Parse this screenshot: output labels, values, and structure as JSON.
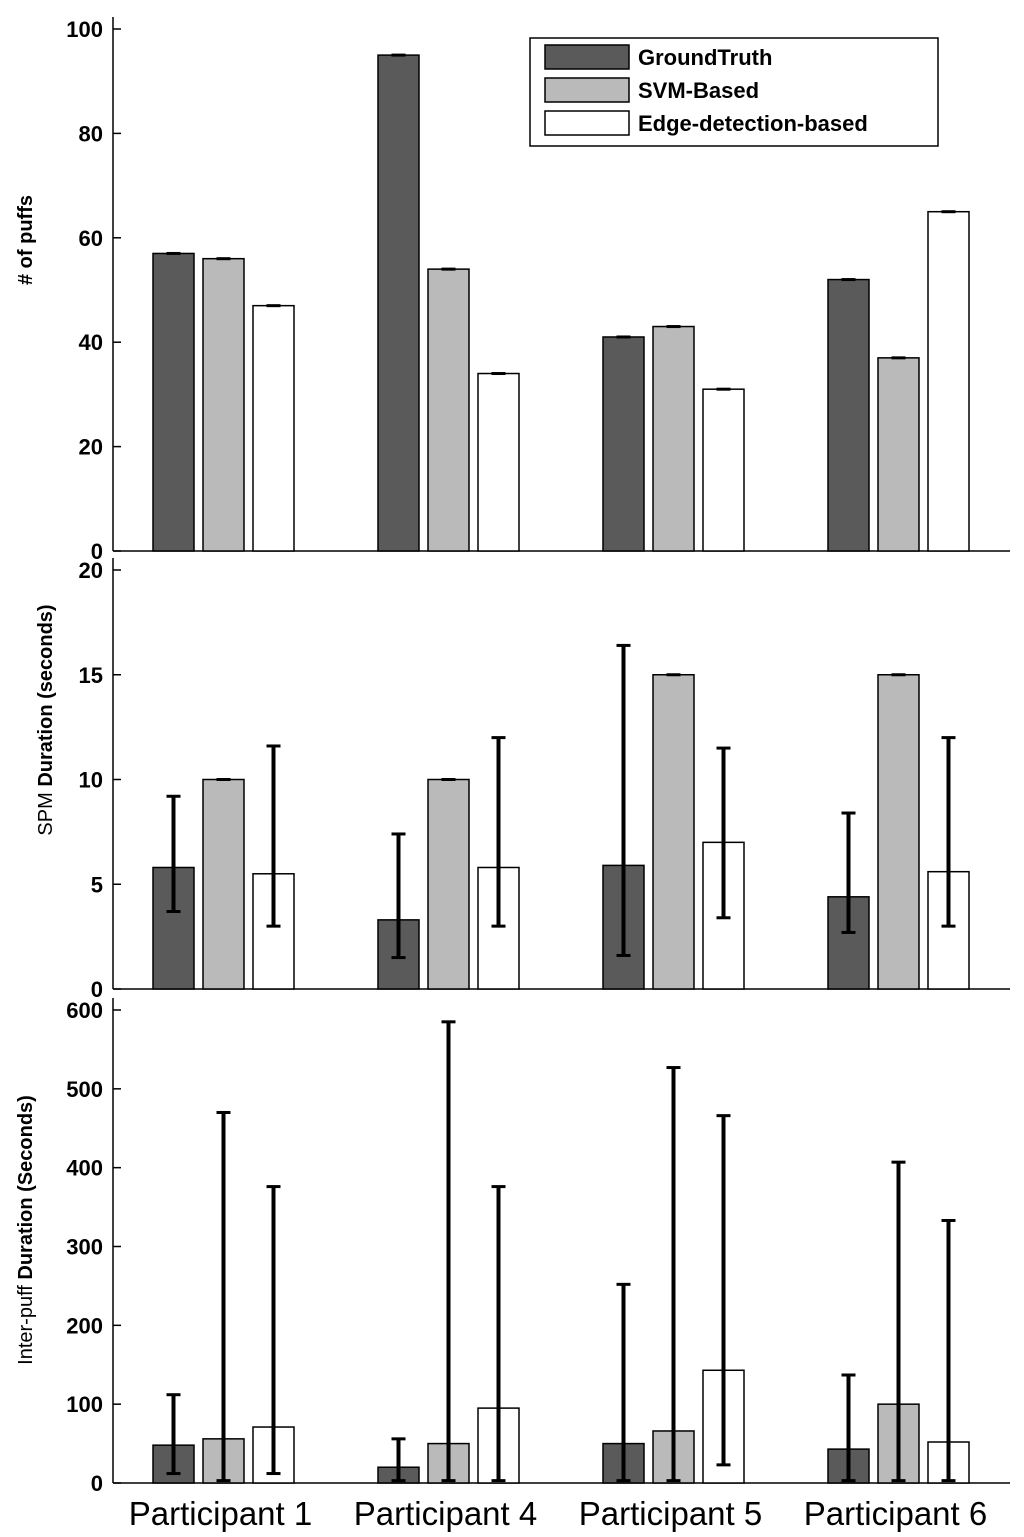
{
  "chart_data": [
    {
      "type": "bar",
      "title": "",
      "xlabel": "",
      "ylabel": "# of puffs",
      "ylim": [
        0,
        100
      ],
      "yticks": [
        "0",
        "20",
        "40",
        "60",
        "80",
        "100"
      ],
      "categories": [
        "Participant 1",
        "Participant 4",
        "Participant 5",
        "Participant 6"
      ],
      "series": [
        {
          "name": "GroundTruth",
          "values": [
            57,
            95,
            41,
            52
          ],
          "err_low": [
            57,
            95,
            41,
            52
          ],
          "err_high": [
            57,
            95,
            41,
            52
          ]
        },
        {
          "name": "SVM-Based",
          "values": [
            56,
            54,
            43,
            37
          ],
          "err_low": [
            56,
            54,
            43,
            37
          ],
          "err_high": [
            56,
            54,
            43,
            37
          ]
        },
        {
          "name": "Edge-detection-based",
          "values": [
            47,
            34,
            31,
            65
          ],
          "err_low": [
            47,
            34,
            31,
            65
          ],
          "err_high": [
            47,
            34,
            31,
            65
          ]
        }
      ],
      "legend_position": "top-right"
    },
    {
      "type": "bar",
      "title": "",
      "xlabel": "",
      "ylabel_prefix": "SPM",
      "ylabel": "Duration (seconds)",
      "ylim": [
        0,
        20
      ],
      "yticks": [
        "0",
        "5",
        "10",
        "15",
        "20"
      ],
      "categories": [
        "Participant 1",
        "Participant 4",
        "Participant 5",
        "Participant 6"
      ],
      "series": [
        {
          "name": "GroundTruth",
          "values": [
            5.8,
            3.3,
            5.9,
            4.4
          ],
          "err_low": [
            3.7,
            1.5,
            1.6,
            2.7
          ],
          "err_high": [
            9.2,
            7.4,
            16.4,
            8.4
          ]
        },
        {
          "name": "SVM-Based",
          "values": [
            10,
            10,
            15,
            15
          ],
          "err_low": [
            10,
            10,
            15,
            15
          ],
          "err_high": [
            10,
            10,
            15,
            15
          ]
        },
        {
          "name": "Edge-detection-based",
          "values": [
            5.5,
            5.8,
            7.0,
            5.6
          ],
          "err_low": [
            3.0,
            3.0,
            3.4,
            3.0
          ],
          "err_high": [
            11.6,
            12.0,
            11.5,
            12.0
          ]
        }
      ]
    },
    {
      "type": "bar",
      "title": "",
      "xlabel": "",
      "ylabel_prefix": "Inter-puff",
      "ylabel": "Duration (Seconds)",
      "ylim": [
        0,
        600
      ],
      "yticks": [
        "0",
        "100",
        "200",
        "300",
        "400",
        "500",
        "600"
      ],
      "categories": [
        "Participant 1",
        "Participant 4",
        "Participant 5",
        "Participant 6"
      ],
      "series": [
        {
          "name": "GroundTruth",
          "values": [
            48,
            20,
            50,
            43
          ],
          "err_low": [
            12,
            3,
            3,
            3
          ],
          "err_high": [
            112,
            56,
            252,
            137
          ]
        },
        {
          "name": "SVM-Based",
          "values": [
            56,
            50,
            66,
            100
          ],
          "err_low": [
            3,
            3,
            3,
            3
          ],
          "err_high": [
            470,
            585,
            527,
            407
          ]
        },
        {
          "name": "Edge-detection-based",
          "values": [
            71,
            95,
            143,
            52
          ],
          "err_low": [
            12,
            3,
            23,
            3
          ],
          "err_high": [
            376,
            376,
            466,
            333
          ]
        }
      ]
    }
  ],
  "colors": {
    "GroundTruth": "#5a5a5a",
    "SVM-Based": "#bababa",
    "Edge-detection-based": "#ffffff"
  }
}
